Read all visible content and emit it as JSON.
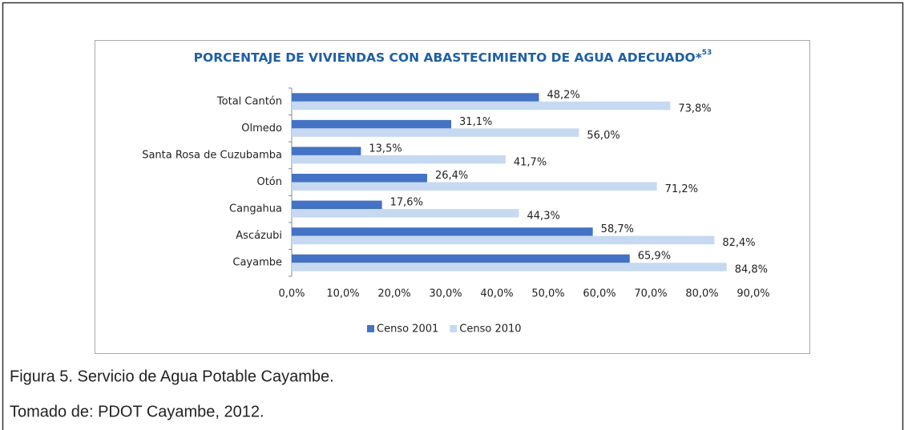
{
  "chart_data": {
    "type": "bar",
    "orientation": "horizontal",
    "title": "PORCENTAJE DE VIVIENDAS CON ABASTECIMIENTO DE AGUA ADECUADO*",
    "title_superscript": "53",
    "categories": [
      "Total Cantón",
      "Olmedo",
      "Santa Rosa de Cuzubamba",
      "Otón",
      "Cangahua",
      "Ascázubi",
      "Cayambe"
    ],
    "series": [
      {
        "name": "Censo 2001",
        "color": "#4472c4",
        "values": [
          48.2,
          31.1,
          13.5,
          26.4,
          17.6,
          58.7,
          65.9
        ],
        "value_labels": [
          "48,2%",
          "31,1%",
          "13,5%",
          "26,4%",
          "17,6%",
          "58,7%",
          "65,9%"
        ]
      },
      {
        "name": "Censo 2010",
        "color": "#c6d9f1",
        "values": [
          73.8,
          56.0,
          41.7,
          71.2,
          44.3,
          82.4,
          84.8
        ],
        "value_labels": [
          "73,8%",
          "56,0%",
          "41,7%",
          "71,2%",
          "44,3%",
          "82,4%",
          "84,8%"
        ]
      }
    ],
    "xlim": [
      0,
      90
    ],
    "xticks": [
      {
        "value": 0,
        "label": "0,0%"
      },
      {
        "value": 10,
        "label": "10,0%"
      },
      {
        "value": 20,
        "label": "20,0%"
      },
      {
        "value": 30,
        "label": "30,0%"
      },
      {
        "value": 40,
        "label": "40,0%"
      },
      {
        "value": 50,
        "label": "50,0%"
      },
      {
        "value": 60,
        "label": "60,0%"
      },
      {
        "value": 70,
        "label": "70,0%"
      },
      {
        "value": 80,
        "label": "80,0%"
      },
      {
        "value": 90,
        "label": "90,0%"
      }
    ],
    "legend": "bottom",
    "caption": "Figura 5. Servicio de Agua Potable Cayambe.",
    "source": "Tomado de: PDOT Cayambe, 2012."
  }
}
